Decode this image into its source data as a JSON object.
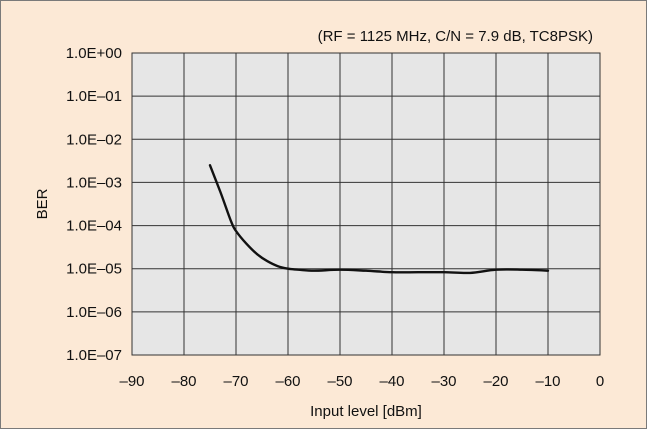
{
  "chart_data": {
    "type": "line",
    "title": "(RF = 1125 MHz, C/N = 7.9 dB, TC8PSK)",
    "xlabel": "Input level  [dBm]",
    "ylabel": "BER",
    "xlim": [
      -90,
      0
    ],
    "ylim_exponent": [
      -7,
      0
    ],
    "y_scale": "log",
    "grid": true,
    "x_ticks": [
      "–90",
      "–80",
      "–70",
      "–60",
      "–50",
      "–40",
      "–30",
      "–20",
      "–10",
      "0"
    ],
    "y_ticks": [
      "1.0E+00",
      "1.0E–01",
      "1.0E–02",
      "1.0E–03",
      "1.0E–04",
      "1.0E–05",
      "1.0E–06",
      "1.0E–07"
    ],
    "series": [
      {
        "x": [
          -75,
          -73,
          -71,
          -70,
          -68,
          -66,
          -64,
          -62,
          -60,
          -58,
          -55,
          -50,
          -45,
          -40,
          -35,
          -30,
          -25,
          -20,
          -15,
          -10
        ],
        "y": [
          0.0025,
          0.0006,
          0.00013,
          7.5e-05,
          3.8e-05,
          2.2e-05,
          1.5e-05,
          1.15e-05,
          1e-05,
          9.5e-06,
          9e-06,
          9.5e-06,
          9e-06,
          8.3e-06,
          8.3e-06,
          8.3e-06,
          8e-06,
          9.5e-06,
          9.5e-06,
          9e-06
        ]
      }
    ],
    "colors": {
      "background": "#fce9d6",
      "plot": "#e6e6e6",
      "grid": "#333333",
      "line": "#111111"
    }
  }
}
